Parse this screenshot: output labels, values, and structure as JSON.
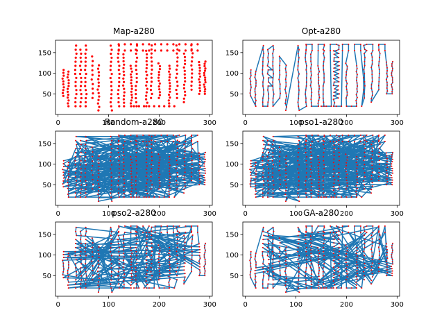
{
  "colors": {
    "city": "#ff0000",
    "route": "#1f77b4",
    "axes": "#000000",
    "background": "#ffffff"
  },
  "chart_data": [
    {
      "type": "scatter",
      "title": "Map-a280",
      "xlim": [
        -5,
        305
      ],
      "ylim": [
        0,
        180
      ],
      "xticks": [
        0,
        100,
        200,
        300
      ],
      "yticks": [
        50,
        100,
        150
      ],
      "xtick_labels": [
        "0",
        "100",
        "200",
        "300"
      ],
      "ytick_labels": [
        "50",
        "100",
        "150"
      ],
      "points": "cities",
      "route": "none",
      "grid": false
    },
    {
      "type": "line",
      "title": "Opt-a280",
      "xlim": [
        -5,
        305
      ],
      "ylim": [
        0,
        180
      ],
      "xticks": [
        0,
        100,
        200,
        300
      ],
      "yticks": [
        50,
        100,
        150
      ],
      "xtick_labels": [
        "0",
        "100",
        "200",
        "300"
      ],
      "ytick_labels": [
        "50",
        "100",
        "150"
      ],
      "points": "cities",
      "route": "optimal",
      "grid": false
    },
    {
      "type": "line",
      "title": "Random-a280",
      "xlim": [
        -5,
        305
      ],
      "ylim": [
        0,
        180
      ],
      "xticks": [
        0,
        100,
        200,
        300
      ],
      "yticks": [
        50,
        100,
        150
      ],
      "xtick_labels": [
        "0",
        "100",
        "200",
        "300"
      ],
      "ytick_labels": [
        "50",
        "100",
        "150"
      ],
      "points": "cities",
      "route": "random",
      "grid": false
    },
    {
      "type": "line",
      "title": "pso1-a280",
      "xlim": [
        -5,
        305
      ],
      "ylim": [
        0,
        180
      ],
      "xticks": [
        0,
        100,
        200,
        300
      ],
      "yticks": [
        50,
        100,
        150
      ],
      "xtick_labels": [
        "0",
        "100",
        "200",
        "300"
      ],
      "ytick_labels": [
        "50",
        "100",
        "150"
      ],
      "points": "cities",
      "route": "random",
      "grid": false
    },
    {
      "type": "line",
      "title": "pso2-a280",
      "xlim": [
        -5,
        305
      ],
      "ylim": [
        0,
        180
      ],
      "xticks": [
        0,
        100,
        200,
        300
      ],
      "yticks": [
        50,
        100,
        150
      ],
      "xtick_labels": [
        "0",
        "100",
        "200",
        "300"
      ],
      "ytick_labels": [
        "50",
        "100",
        "150"
      ],
      "points": "cities",
      "route": "partial",
      "grid": false
    },
    {
      "type": "line",
      "title": "GA-a280",
      "xlim": [
        -5,
        305
      ],
      "ylim": [
        0,
        180
      ],
      "xticks": [
        0,
        100,
        200,
        300
      ],
      "yticks": [
        50,
        100,
        150
      ],
      "xtick_labels": [
        "0",
        "100",
        "200",
        "300"
      ],
      "ytick_labels": [
        "50",
        "100",
        "150"
      ],
      "points": "cities",
      "route": "partial",
      "grid": false
    }
  ]
}
